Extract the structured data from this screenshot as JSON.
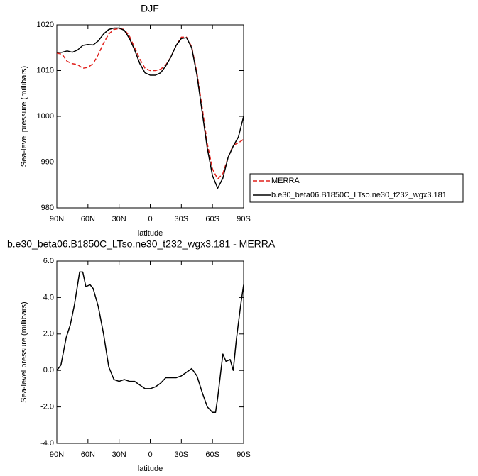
{
  "chart_data": [
    {
      "type": "line",
      "title": "DJF",
      "ylabel": "Sea-level pressure (millibars)",
      "xlabel": "latitude",
      "x": [
        90,
        85,
        80,
        75,
        70,
        65,
        60,
        55,
        50,
        45,
        40,
        35,
        30,
        25,
        20,
        15,
        10,
        5,
        0,
        -5,
        -10,
        -15,
        -20,
        -25,
        -30,
        -35,
        -40,
        -45,
        -50,
        -55,
        -60,
        -65,
        -70,
        -75,
        -80,
        -85,
        -90
      ],
      "xlim": [
        90,
        -90
      ],
      "xticks": [
        {
          "value": 90,
          "label": "90N"
        },
        {
          "value": 60,
          "label": "60N"
        },
        {
          "value": 30,
          "label": "30N"
        },
        0,
        {
          "value": -30,
          "label": "30S"
        },
        {
          "value": -60,
          "label": "60S"
        },
        {
          "value": -90,
          "label": "90S"
        }
      ],
      "ylim": [
        980,
        1020
      ],
      "yticks": [
        980,
        990,
        1000,
        1010,
        1020
      ],
      "legend": "right",
      "series": [
        {
          "name": "MERRA",
          "color": "#e0201b",
          "dash": true,
          "values": [
            1013.8,
            1013.6,
            1012,
            1011.5,
            1011.3,
            1010.5,
            1010.7,
            1011.5,
            1013.5,
            1016,
            1018,
            1019,
            1019.2,
            1019,
            1017.5,
            1015,
            1012.5,
            1010.5,
            1010,
            1010,
            1010.3,
            1011.2,
            1013,
            1015.5,
            1017.3,
            1017.3,
            1015.2,
            1009.5,
            1002,
            994,
            988.5,
            986.3,
            987.5,
            991,
            993.7,
            994.2,
            995
          ]
        },
        {
          "name": "b.e30_beta06.B1850C_LTso.ne30_t232_wgx3.181",
          "color": "#000000",
          "dash": false,
          "values": [
            1014,
            1014,
            1014.3,
            1014,
            1014.5,
            1015.5,
            1015.7,
            1015.6,
            1016.5,
            1018,
            1019,
            1019.3,
            1019.3,
            1018.8,
            1017,
            1014.5,
            1011.5,
            1009.5,
            1009,
            1009,
            1009.5,
            1011,
            1013,
            1015.5,
            1017,
            1017.2,
            1015,
            1009,
            1001,
            993,
            987,
            984.3,
            986.5,
            991,
            993.5,
            995.5,
            1000
          ]
        }
      ]
    },
    {
      "type": "line",
      "title": "b.e30_beta06.B1850C_LTso.ne30_t232_wgx3.181 - MERRA",
      "ylabel": "Sea-level pressure (millibars)",
      "xlabel": "latitude",
      "x": [
        90,
        86,
        81,
        77,
        73,
        68,
        65,
        62,
        58,
        55,
        50,
        45,
        40,
        35,
        30,
        25,
        20,
        15,
        10,
        5,
        0,
        -5,
        -10,
        -15,
        -20,
        -25,
        -30,
        -35,
        -40,
        -45,
        -50,
        -55,
        -60,
        -63,
        -65,
        -70,
        -73,
        -77,
        -80,
        -83,
        -87,
        -90
      ],
      "xlim": [
        90,
        -90
      ],
      "xticks": [
        {
          "value": 90,
          "label": "90N"
        },
        {
          "value": 60,
          "label": "60N"
        },
        {
          "value": 30,
          "label": "30N"
        },
        0,
        {
          "value": -30,
          "label": "30S"
        },
        {
          "value": -60,
          "label": "60S"
        },
        {
          "value": -90,
          "label": "90S"
        }
      ],
      "ylim": [
        -4,
        6
      ],
      "yticks": [
        {
          "value": -4,
          "label": "-4.0"
        },
        {
          "value": -2,
          "label": "-2.0"
        },
        {
          "value": 0,
          "label": "0.0"
        },
        {
          "value": 2,
          "label": "2.0"
        },
        {
          "value": 4,
          "label": "4.0"
        },
        {
          "value": 6,
          "label": "6.0"
        }
      ],
      "series": [
        {
          "color": "#000000",
          "dash": false,
          "values": [
            0,
            0.3,
            1.8,
            2.5,
            3.6,
            5.4,
            5.4,
            4.6,
            4.7,
            4.5,
            3.5,
            2.0,
            0.2,
            -0.5,
            -0.6,
            -0.5,
            -0.6,
            -0.6,
            -0.8,
            -1.0,
            -1.0,
            -0.9,
            -0.7,
            -0.4,
            -0.4,
            -0.4,
            -0.3,
            -0.1,
            0.1,
            -0.3,
            -1.2,
            -2.0,
            -2.3,
            -2.3,
            -1.5,
            0.9,
            0.5,
            0.6,
            0,
            1.7,
            3.5,
            4.7
          ]
        }
      ]
    }
  ]
}
